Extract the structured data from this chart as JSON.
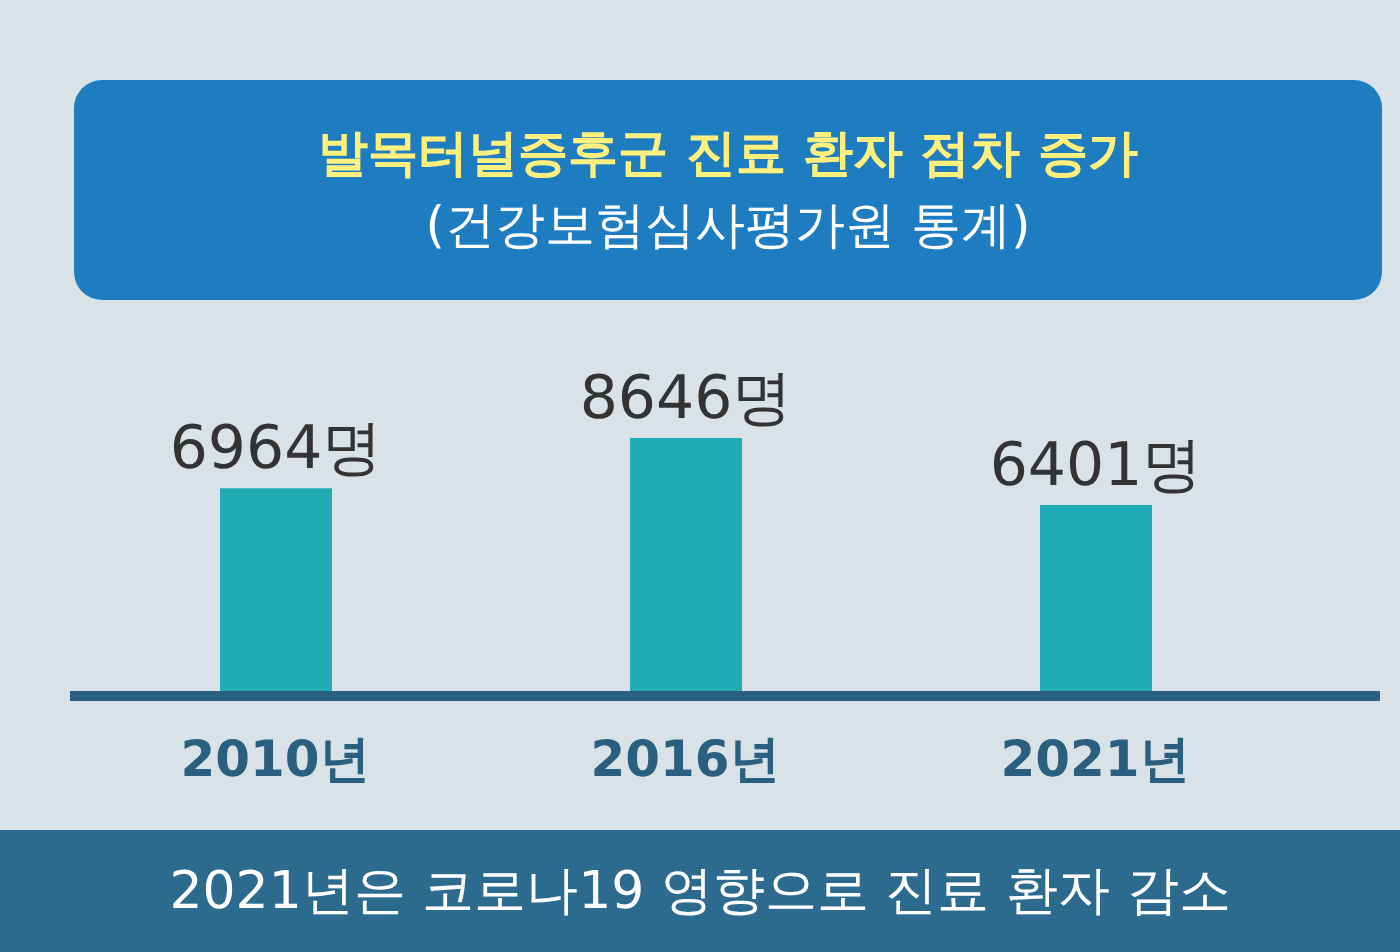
{
  "chart_data": {
    "type": "bar",
    "title": "발목터널증후군 진료 환자 점차 증가",
    "subtitle": "(건강보험심사평가원 통계)",
    "categories": [
      "2010년",
      "2016년",
      "2021년"
    ],
    "values": [
      6964,
      8646,
      6401
    ],
    "value_labels": [
      "6964명",
      "8646명",
      "6401명"
    ],
    "color": "#20abb5",
    "legend": false,
    "grid": false,
    "annotations": [
      "2021년은 코로나19 영향으로 진료 환자 감소"
    ]
  }
}
